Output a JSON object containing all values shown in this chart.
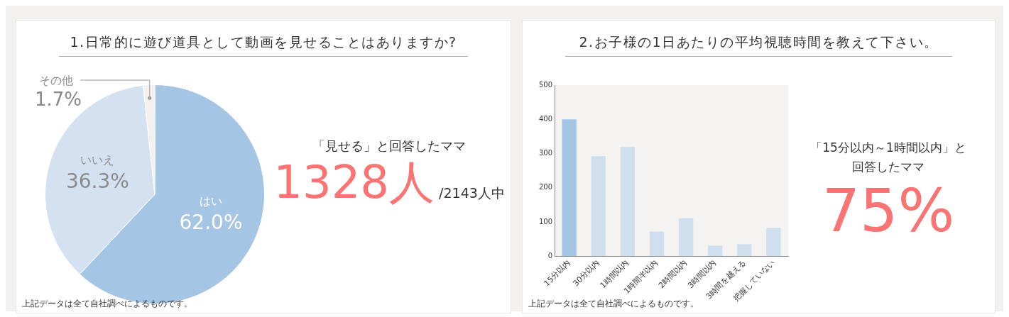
{
  "chart_data": [
    {
      "type": "pie",
      "title": "1.日常的に遊び道具として動画を見せることはありますか?",
      "categories": [
        "はい",
        "いいえ",
        "その他"
      ],
      "values": [
        62.0,
        36.3,
        1.7
      ],
      "colors": [
        "#a5c5e4",
        "#d3e1f1",
        "#f2f1ef"
      ],
      "value_labels": [
        "62.0%",
        "36.3%",
        "1.7%"
      ],
      "annotations": [
        "上記データは全て自社調べによるものです。"
      ]
    },
    {
      "type": "other",
      "annotations": [
        "「見せる」と回答したママ",
        "1328人",
        "/2143人中"
      ]
    },
    {
      "type": "bar",
      "title": "2.お子様の1日あたりの平均視聴時間を教えて下さい。",
      "categories": [
        "15分以内",
        "30分以内",
        "1時間以内",
        "1時間半以内",
        "2時間以内",
        "3時間以内",
        "3時間を越える",
        "把握していない"
      ],
      "values": [
        400,
        292,
        319,
        72,
        111,
        31,
        35,
        83
      ],
      "colors": [
        "#a5c5e4",
        "#d0dfee",
        "#d0dfee",
        "#d0dfee",
        "#d0dfee",
        "#d0dfee",
        "#d0dfee",
        "#d0dfee"
      ],
      "ylim": [
        0,
        500
      ],
      "yticks": [
        0,
        100,
        200,
        300,
        400,
        500
      ],
      "grid": false,
      "legend": false,
      "annotations": [
        "上記データは全て自社調べによるものです。"
      ]
    },
    {
      "type": "other",
      "annotations": [
        "「15分以内～1時間以内」と",
        "回答したママ",
        "75%"
      ]
    }
  ]
}
